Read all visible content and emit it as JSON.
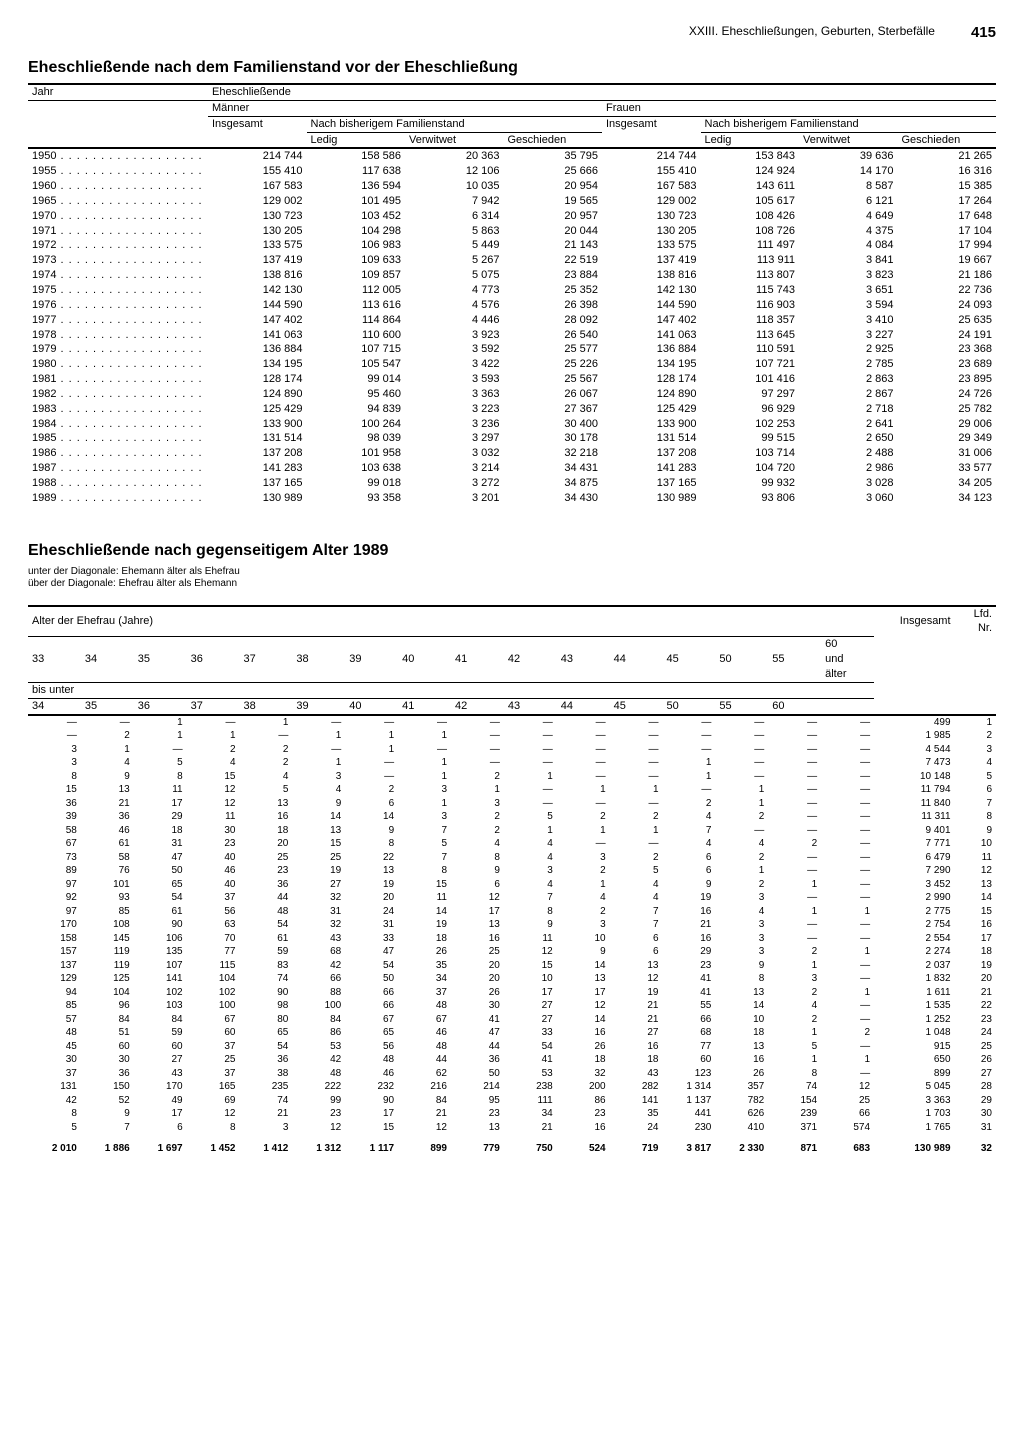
{
  "header": {
    "chapter": "XXIII. Eheschließungen, Geburten, Sterbefälle",
    "page": "415"
  },
  "table1": {
    "title": "Eheschließende nach dem Familienstand vor der Eheschließung",
    "col_jahr": "Jahr",
    "col_eheschliessende": "Eheschließende",
    "col_maenner": "Männer",
    "col_frauen": "Frauen",
    "col_insgesamt": "Insgesamt",
    "col_nach": "Nach bisherigem Familienstand",
    "col_ledig": "Ledig",
    "col_verwitwet": "Verwitwet",
    "col_geschieden": "Geschieden",
    "rows": [
      {
        "y": "1950",
        "m_ins": "214 744",
        "m_led": "158 586",
        "m_ver": "20 363",
        "m_ges": "35 795",
        "f_ins": "214 744",
        "f_led": "153 843",
        "f_ver": "39 636",
        "f_ges": "21 265"
      },
      {
        "y": "1955",
        "m_ins": "155 410",
        "m_led": "117 638",
        "m_ver": "12 106",
        "m_ges": "25 666",
        "f_ins": "155 410",
        "f_led": "124 924",
        "f_ver": "14 170",
        "f_ges": "16 316"
      },
      {
        "y": "1960",
        "m_ins": "167 583",
        "m_led": "136 594",
        "m_ver": "10 035",
        "m_ges": "20 954",
        "f_ins": "167 583",
        "f_led": "143 611",
        "f_ver": "8 587",
        "f_ges": "15 385"
      },
      {
        "y": "1965",
        "m_ins": "129 002",
        "m_led": "101 495",
        "m_ver": "7 942",
        "m_ges": "19 565",
        "f_ins": "129 002",
        "f_led": "105 617",
        "f_ver": "6 121",
        "f_ges": "17 264"
      },
      {
        "y": "1970",
        "m_ins": "130 723",
        "m_led": "103 452",
        "m_ver": "6 314",
        "m_ges": "20 957",
        "f_ins": "130 723",
        "f_led": "108 426",
        "f_ver": "4 649",
        "f_ges": "17 648"
      },
      {
        "y": "1971",
        "m_ins": "130 205",
        "m_led": "104 298",
        "m_ver": "5 863",
        "m_ges": "20 044",
        "f_ins": "130 205",
        "f_led": "108 726",
        "f_ver": "4 375",
        "f_ges": "17 104"
      },
      {
        "y": "1972",
        "m_ins": "133 575",
        "m_led": "106 983",
        "m_ver": "5 449",
        "m_ges": "21 143",
        "f_ins": "133 575",
        "f_led": "111 497",
        "f_ver": "4 084",
        "f_ges": "17 994"
      },
      {
        "y": "1973",
        "m_ins": "137 419",
        "m_led": "109 633",
        "m_ver": "5 267",
        "m_ges": "22 519",
        "f_ins": "137 419",
        "f_led": "113 911",
        "f_ver": "3 841",
        "f_ges": "19 667"
      },
      {
        "y": "1974",
        "m_ins": "138 816",
        "m_led": "109 857",
        "m_ver": "5 075",
        "m_ges": "23 884",
        "f_ins": "138 816",
        "f_led": "113 807",
        "f_ver": "3 823",
        "f_ges": "21 186"
      },
      {
        "y": "1975",
        "m_ins": "142 130",
        "m_led": "112 005",
        "m_ver": "4 773",
        "m_ges": "25 352",
        "f_ins": "142 130",
        "f_led": "115 743",
        "f_ver": "3 651",
        "f_ges": "22 736"
      },
      {
        "y": "1976",
        "m_ins": "144 590",
        "m_led": "113 616",
        "m_ver": "4 576",
        "m_ges": "26 398",
        "f_ins": "144 590",
        "f_led": "116 903",
        "f_ver": "3 594",
        "f_ges": "24 093"
      },
      {
        "y": "1977",
        "m_ins": "147 402",
        "m_led": "114 864",
        "m_ver": "4 446",
        "m_ges": "28 092",
        "f_ins": "147 402",
        "f_led": "118 357",
        "f_ver": "3 410",
        "f_ges": "25 635"
      },
      {
        "y": "1978",
        "m_ins": "141 063",
        "m_led": "110 600",
        "m_ver": "3 923",
        "m_ges": "26 540",
        "f_ins": "141 063",
        "f_led": "113 645",
        "f_ver": "3 227",
        "f_ges": "24 191"
      },
      {
        "y": "1979",
        "m_ins": "136 884",
        "m_led": "107 715",
        "m_ver": "3 592",
        "m_ges": "25 577",
        "f_ins": "136 884",
        "f_led": "110 591",
        "f_ver": "2 925",
        "f_ges": "23 368"
      },
      {
        "y": "1980",
        "m_ins": "134 195",
        "m_led": "105 547",
        "m_ver": "3 422",
        "m_ges": "25 226",
        "f_ins": "134 195",
        "f_led": "107 721",
        "f_ver": "2 785",
        "f_ges": "23 689"
      },
      {
        "y": "1981",
        "m_ins": "128 174",
        "m_led": "99 014",
        "m_ver": "3 593",
        "m_ges": "25 567",
        "f_ins": "128 174",
        "f_led": "101 416",
        "f_ver": "2 863",
        "f_ges": "23 895"
      },
      {
        "y": "1982",
        "m_ins": "124 890",
        "m_led": "95 460",
        "m_ver": "3 363",
        "m_ges": "26 067",
        "f_ins": "124 890",
        "f_led": "97 297",
        "f_ver": "2 867",
        "f_ges": "24 726"
      },
      {
        "y": "1983",
        "m_ins": "125 429",
        "m_led": "94 839",
        "m_ver": "3 223",
        "m_ges": "27 367",
        "f_ins": "125 429",
        "f_led": "96 929",
        "f_ver": "2 718",
        "f_ges": "25 782"
      },
      {
        "y": "1984",
        "m_ins": "133 900",
        "m_led": "100 264",
        "m_ver": "3 236",
        "m_ges": "30 400",
        "f_ins": "133 900",
        "f_led": "102 253",
        "f_ver": "2 641",
        "f_ges": "29 006"
      },
      {
        "y": "1985",
        "m_ins": "131 514",
        "m_led": "98 039",
        "m_ver": "3 297",
        "m_ges": "30 178",
        "f_ins": "131 514",
        "f_led": "99 515",
        "f_ver": "2 650",
        "f_ges": "29 349"
      },
      {
        "y": "1986",
        "m_ins": "137 208",
        "m_led": "101 958",
        "m_ver": "3 032",
        "m_ges": "32 218",
        "f_ins": "137 208",
        "f_led": "103 714",
        "f_ver": "2 488",
        "f_ges": "31 006"
      },
      {
        "y": "1987",
        "m_ins": "141 283",
        "m_led": "103 638",
        "m_ver": "3 214",
        "m_ges": "34 431",
        "f_ins": "141 283",
        "f_led": "104 720",
        "f_ver": "2 986",
        "f_ges": "33 577"
      },
      {
        "y": "1988",
        "m_ins": "137 165",
        "m_led": "99 018",
        "m_ver": "3 272",
        "m_ges": "34 875",
        "f_ins": "137 165",
        "f_led": "99 932",
        "f_ver": "3 028",
        "f_ges": "34 205"
      },
      {
        "y": "1989",
        "m_ins": "130 989",
        "m_led": "93 358",
        "m_ver": "3 201",
        "m_ges": "34 430",
        "f_ins": "130 989",
        "f_led": "93 806",
        "f_ver": "3 060",
        "f_ges": "34 123"
      }
    ]
  },
  "table2": {
    "title": "Eheschließende nach gegenseitigem Alter 1989",
    "subtitle1": "unter der Diagonale: Ehemann älter als Ehefrau",
    "subtitle2": "über der Diagonale: Ehefrau älter als Ehemann",
    "hdr_alter": "Alter der Ehefrau (Jahre)",
    "hdr_insgesamt": "Insgesamt",
    "hdr_lfd": "Lfd.\nNr.",
    "hdr_top": [
      "33",
      "34",
      "35",
      "36",
      "37",
      "38",
      "39",
      "40",
      "41",
      "42",
      "43",
      "44",
      "45",
      "50",
      "55",
      "60\nund\nälter"
    ],
    "hdr_bisunter": "bis unter",
    "hdr_bot": [
      "34",
      "35",
      "36",
      "37",
      "38",
      "39",
      "40",
      "41",
      "42",
      "43",
      "44",
      "45",
      "50",
      "55",
      "60",
      ""
    ],
    "rows": [
      {
        "c": [
          "—",
          "—",
          "1",
          "—",
          "1",
          "—",
          "—",
          "—",
          "—",
          "—",
          "—",
          "—",
          "—",
          "—",
          "—",
          "—"
        ],
        "ins": "499",
        "nr": "1"
      },
      {
        "c": [
          "—",
          "2",
          "1",
          "1",
          "—",
          "1",
          "1",
          "1",
          "—",
          "—",
          "—",
          "—",
          "—",
          "—",
          "—",
          "—"
        ],
        "ins": "1 985",
        "nr": "2"
      },
      {
        "c": [
          "3",
          "1",
          "—",
          "2",
          "2",
          "—",
          "1",
          "—",
          "—",
          "—",
          "—",
          "—",
          "—",
          "—",
          "—",
          "—"
        ],
        "ins": "4 544",
        "nr": "3"
      },
      {
        "c": [
          "3",
          "4",
          "5",
          "4",
          "2",
          "1",
          "—",
          "1",
          "—",
          "—",
          "—",
          "—",
          "1",
          "—",
          "—",
          "—"
        ],
        "ins": "7 473",
        "nr": "4"
      },
      {
        "c": [
          "8",
          "9",
          "8",
          "15",
          "4",
          "3",
          "—",
          "1",
          "2",
          "1",
          "—",
          "—",
          "1",
          "—",
          "—",
          "—"
        ],
        "ins": "10 148",
        "nr": "5"
      },
      {
        "c": [
          "15",
          "13",
          "11",
          "12",
          "5",
          "4",
          "2",
          "3",
          "1",
          "—",
          "1",
          "1",
          "—",
          "1",
          "—",
          "—"
        ],
        "ins": "11 794",
        "nr": "6"
      },
      {
        "c": [
          "36",
          "21",
          "17",
          "12",
          "13",
          "9",
          "6",
          "1",
          "3",
          "—",
          "—",
          "—",
          "2",
          "1",
          "—",
          "—"
        ],
        "ins": "11 840",
        "nr": "7"
      },
      {
        "c": [
          "39",
          "36",
          "29",
          "11",
          "16",
          "14",
          "14",
          "3",
          "2",
          "5",
          "2",
          "2",
          "4",
          "2",
          "—",
          "—"
        ],
        "ins": "11 311",
        "nr": "8"
      },
      {
        "c": [
          "58",
          "46",
          "18",
          "30",
          "18",
          "13",
          "9",
          "7",
          "2",
          "1",
          "1",
          "1",
          "7",
          "—",
          "—",
          "—"
        ],
        "ins": "9 401",
        "nr": "9"
      },
      {
        "c": [
          "67",
          "61",
          "31",
          "23",
          "20",
          "15",
          "8",
          "5",
          "4",
          "4",
          "—",
          "—",
          "4",
          "4",
          "2",
          "—"
        ],
        "ins": "7 771",
        "nr": "10"
      },
      {
        "c": [
          "73",
          "58",
          "47",
          "40",
          "25",
          "25",
          "22",
          "7",
          "8",
          "4",
          "3",
          "2",
          "6",
          "2",
          "—",
          "—"
        ],
        "ins": "6 479",
        "nr": "11"
      },
      {
        "c": [
          "89",
          "76",
          "50",
          "46",
          "23",
          "19",
          "13",
          "8",
          "9",
          "3",
          "2",
          "5",
          "6",
          "1",
          "—",
          "—"
        ],
        "ins": "7 290",
        "nr": "12"
      },
      {
        "c": [
          "97",
          "101",
          "65",
          "40",
          "36",
          "27",
          "19",
          "15",
          "6",
          "4",
          "1",
          "4",
          "9",
          "2",
          "1",
          "—"
        ],
        "ins": "3 452",
        "nr": "13"
      },
      {
        "c": [
          "92",
          "93",
          "54",
          "37",
          "44",
          "32",
          "20",
          "11",
          "12",
          "7",
          "4",
          "4",
          "19",
          "3",
          "—",
          "—"
        ],
        "ins": "2 990",
        "nr": "14"
      },
      {
        "c": [
          "97",
          "85",
          "61",
          "56",
          "48",
          "31",
          "24",
          "14",
          "17",
          "8",
          "2",
          "7",
          "16",
          "4",
          "1",
          "1"
        ],
        "ins": "2 775",
        "nr": "15"
      },
      {
        "c": [
          "170",
          "108",
          "90",
          "63",
          "54",
          "32",
          "31",
          "19",
          "13",
          "9",
          "3",
          "7",
          "21",
          "3",
          "—",
          "—"
        ],
        "ins": "2 754",
        "nr": "16"
      },
      {
        "c": [
          "158",
          "145",
          "106",
          "70",
          "61",
          "43",
          "33",
          "18",
          "16",
          "11",
          "10",
          "6",
          "16",
          "3",
          "—",
          "—"
        ],
        "ins": "2 554",
        "nr": "17"
      },
      {
        "c": [
          "157",
          "119",
          "135",
          "77",
          "59",
          "68",
          "47",
          "26",
          "25",
          "12",
          "9",
          "6",
          "29",
          "3",
          "2",
          "1"
        ],
        "ins": "2 274",
        "nr": "18"
      },
      {
        "c": [
          "137",
          "119",
          "107",
          "115",
          "83",
          "42",
          "54",
          "35",
          "20",
          "15",
          "14",
          "13",
          "23",
          "9",
          "1",
          "—"
        ],
        "ins": "2 037",
        "nr": "19"
      },
      {
        "c": [
          "129",
          "125",
          "141",
          "104",
          "74",
          "66",
          "50",
          "34",
          "20",
          "10",
          "13",
          "12",
          "41",
          "8",
          "3",
          "—"
        ],
        "ins": "1 832",
        "nr": "20"
      },
      {
        "c": [
          "94",
          "104",
          "102",
          "102",
          "90",
          "88",
          "66",
          "37",
          "26",
          "17",
          "17",
          "19",
          "41",
          "13",
          "2",
          "1"
        ],
        "ins": "1 611",
        "nr": "21"
      },
      {
        "c": [
          "85",
          "96",
          "103",
          "100",
          "98",
          "100",
          "66",
          "48",
          "30",
          "27",
          "12",
          "21",
          "55",
          "14",
          "4",
          "—"
        ],
        "ins": "1 535",
        "nr": "22"
      },
      {
        "c": [
          "57",
          "84",
          "84",
          "67",
          "80",
          "84",
          "67",
          "67",
          "41",
          "27",
          "14",
          "21",
          "66",
          "10",
          "2",
          "—"
        ],
        "ins": "1 252",
        "nr": "23"
      },
      {
        "c": [
          "48",
          "51",
          "59",
          "60",
          "65",
          "86",
          "65",
          "46",
          "47",
          "33",
          "16",
          "27",
          "68",
          "18",
          "1",
          "2"
        ],
        "ins": "1 048",
        "nr": "24"
      },
      {
        "c": [
          "45",
          "60",
          "60",
          "37",
          "54",
          "53",
          "56",
          "48",
          "44",
          "54",
          "26",
          "16",
          "77",
          "13",
          "5",
          "—"
        ],
        "ins": "915",
        "nr": "25"
      },
      {
        "c": [
          "30",
          "30",
          "27",
          "25",
          "36",
          "42",
          "48",
          "44",
          "36",
          "41",
          "18",
          "18",
          "60",
          "16",
          "1",
          "1"
        ],
        "ins": "650",
        "nr": "26"
      },
      {
        "c": [
          "37",
          "36",
          "43",
          "37",
          "38",
          "48",
          "46",
          "62",
          "50",
          "53",
          "32",
          "43",
          "123",
          "26",
          "8",
          "—"
        ],
        "ins": "899",
        "nr": "27"
      },
      {
        "c": [
          "131",
          "150",
          "170",
          "165",
          "235",
          "222",
          "232",
          "216",
          "214",
          "238",
          "200",
          "282",
          "1 314",
          "357",
          "74",
          "12"
        ],
        "ins": "5 045",
        "nr": "28"
      },
      {
        "c": [
          "42",
          "52",
          "49",
          "69",
          "74",
          "99",
          "90",
          "84",
          "95",
          "111",
          "86",
          "141",
          "1 137",
          "782",
          "154",
          "25"
        ],
        "ins": "3 363",
        "nr": "29"
      },
      {
        "c": [
          "8",
          "9",
          "17",
          "12",
          "21",
          "23",
          "17",
          "21",
          "23",
          "34",
          "23",
          "35",
          "441",
          "626",
          "239",
          "66"
        ],
        "ins": "1 703",
        "nr": "30"
      },
      {
        "c": [
          "5",
          "7",
          "6",
          "8",
          "3",
          "12",
          "15",
          "12",
          "13",
          "21",
          "16",
          "24",
          "230",
          "410",
          "371",
          "574"
        ],
        "ins": "1 765",
        "nr": "31"
      }
    ],
    "totals": {
      "c": [
        "2 010",
        "1 886",
        "1 697",
        "1 452",
        "1 412",
        "1 312",
        "1 117",
        "899",
        "779",
        "750",
        "524",
        "719",
        "3 817",
        "2 330",
        "871",
        "683"
      ],
      "ins": "130 989",
      "nr": "32"
    }
  }
}
